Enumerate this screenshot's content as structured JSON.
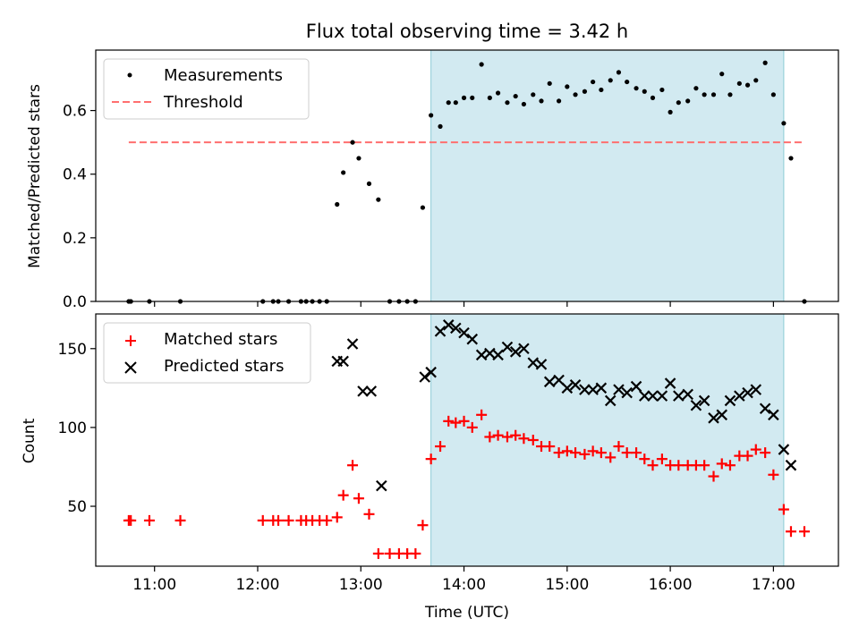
{
  "chart_data": [
    {
      "type": "scatter",
      "title": "Flux total observing time = 3.42 h",
      "xlabel": "",
      "ylabel": "Matched/Predicted stars",
      "xlim": [
        10.43,
        17.63
      ],
      "ylim": [
        0,
        0.79
      ],
      "yticks": [
        0.0,
        0.2,
        0.4,
        0.6
      ],
      "ytick_labels": [
        "0.0",
        "0.2",
        "0.4",
        "0.6"
      ],
      "shaded_region": {
        "x": [
          13.68,
          17.1
        ],
        "color": "#add8e6"
      },
      "legend": {
        "placement": "upper-left",
        "entries": [
          "Measurements",
          "Threshold"
        ]
      },
      "threshold": {
        "name": "Threshold",
        "y": 0.5,
        "x": [
          10.75,
          17.3
        ],
        "color": "#ff6f6f"
      },
      "series": [
        {
          "name": "Measurements",
          "color": "#000000",
          "x": [
            10.75,
            10.77,
            10.95,
            11.25,
            12.05,
            12.15,
            12.2,
            12.3,
            12.42,
            12.47,
            12.53,
            12.6,
            12.67,
            12.77,
            12.83,
            12.92,
            12.98,
            13.08,
            13.17,
            13.28,
            13.37,
            13.45,
            13.53,
            13.6,
            13.68,
            13.77,
            13.85,
            13.92,
            14.0,
            14.08,
            14.17,
            14.25,
            14.33,
            14.42,
            14.5,
            14.58,
            14.67,
            14.75,
            14.83,
            14.92,
            15.0,
            15.08,
            15.17,
            15.25,
            15.33,
            15.42,
            15.5,
            15.58,
            15.67,
            15.75,
            15.83,
            15.92,
            16.0,
            16.08,
            16.17,
            16.25,
            16.33,
            16.42,
            16.5,
            16.58,
            16.67,
            16.75,
            16.83,
            16.92,
            17.0,
            17.1,
            17.17,
            17.3
          ],
          "y": [
            0,
            0,
            0,
            0,
            0,
            0,
            0,
            0,
            0,
            0,
            0,
            0,
            0,
            0.305,
            0.405,
            0.5,
            0.45,
            0.37,
            0.32,
            0,
            0,
            0,
            0,
            0.295,
            0.585,
            0.55,
            0.625,
            0.625,
            0.64,
            0.64,
            0.745,
            0.64,
            0.655,
            0.625,
            0.645,
            0.62,
            0.65,
            0.63,
            0.685,
            0.63,
            0.675,
            0.65,
            0.66,
            0.69,
            0.665,
            0.695,
            0.72,
            0.69,
            0.67,
            0.66,
            0.64,
            0.665,
            0.595,
            0.625,
            0.63,
            0.67,
            0.65,
            0.65,
            0.715,
            0.65,
            0.685,
            0.68,
            0.695,
            0.75,
            0.65,
            0.56,
            0.45,
            0
          ]
        }
      ]
    },
    {
      "type": "scatter",
      "title": "",
      "xlabel": "Time (UTC)",
      "ylabel": "Count",
      "xlim": [
        10.43,
        17.63
      ],
      "ylim": [
        12,
        172
      ],
      "yticks": [
        50,
        100,
        150
      ],
      "ytick_labels": [
        "50",
        "100",
        "150"
      ],
      "xticks": [
        11,
        12,
        13,
        14,
        15,
        16,
        17
      ],
      "xtick_labels": [
        "11:00",
        "12:00",
        "13:00",
        "14:00",
        "15:00",
        "16:00",
        "17:00"
      ],
      "shaded_region": {
        "x": [
          13.68,
          17.1
        ],
        "color": "#add8e6"
      },
      "legend": {
        "placement": "upper-left",
        "entries": [
          "Matched stars",
          "Predicted stars"
        ]
      },
      "series": [
        {
          "name": "Matched stars",
          "marker": "+",
          "color": "#ff0000",
          "x": [
            10.75,
            10.77,
            10.95,
            11.25,
            12.05,
            12.15,
            12.2,
            12.3,
            12.42,
            12.47,
            12.53,
            12.6,
            12.67,
            12.77,
            12.83,
            12.92,
            12.98,
            13.08,
            13.17,
            13.28,
            13.37,
            13.45,
            13.53,
            13.6,
            13.68,
            13.77,
            13.85,
            13.92,
            14.0,
            14.08,
            14.17,
            14.25,
            14.33,
            14.42,
            14.5,
            14.58,
            14.67,
            14.75,
            14.83,
            14.92,
            15.0,
            15.08,
            15.17,
            15.25,
            15.33,
            15.42,
            15.5,
            15.58,
            15.67,
            15.75,
            15.83,
            15.92,
            16.0,
            16.08,
            16.17,
            16.25,
            16.33,
            16.42,
            16.5,
            16.58,
            16.67,
            16.75,
            16.83,
            16.92,
            17.0,
            17.1,
            17.17,
            17.3
          ],
          "y": [
            41,
            41,
            41,
            41,
            41,
            41,
            41,
            41,
            41,
            41,
            41,
            41,
            41,
            43,
            57,
            76,
            55,
            45,
            20,
            20,
            20,
            20,
            20,
            38,
            80,
            88,
            104,
            103,
            104,
            100,
            108,
            94,
            95,
            94,
            95,
            93,
            92,
            88,
            88,
            84,
            85,
            84,
            83,
            85,
            84,
            81,
            88,
            84,
            84,
            80,
            76,
            80,
            76,
            76,
            76,
            76,
            76,
            69,
            77,
            76,
            82,
            82,
            86,
            84,
            70,
            48,
            34,
            34
          ]
        },
        {
          "name": "Predicted stars",
          "marker": "x",
          "color": "#000000",
          "x": [
            12.77,
            12.83,
            12.92,
            13.02,
            13.1,
            13.2,
            13.62,
            13.68,
            13.77,
            13.85,
            13.92,
            14.0,
            14.08,
            14.17,
            14.25,
            14.33,
            14.42,
            14.5,
            14.58,
            14.67,
            14.75,
            14.83,
            14.92,
            15.0,
            15.08,
            15.17,
            15.25,
            15.33,
            15.42,
            15.5,
            15.58,
            15.67,
            15.75,
            15.83,
            15.92,
            16.0,
            16.08,
            16.17,
            16.25,
            16.33,
            16.42,
            16.5,
            16.58,
            16.67,
            16.75,
            16.83,
            16.92,
            17.0,
            17.1,
            17.17
          ],
          "y": [
            142,
            142,
            153,
            123,
            123,
            63,
            132,
            135,
            161,
            165,
            163,
            160,
            156,
            146,
            147,
            146,
            151,
            148,
            150,
            141,
            140,
            129,
            130,
            125,
            127,
            124,
            124,
            125,
            117,
            124,
            122,
            126,
            120,
            120,
            120,
            128,
            120,
            121,
            114,
            117,
            106,
            108,
            117,
            120,
            122,
            124,
            112,
            108,
            86,
            76
          ]
        }
      ]
    }
  ]
}
